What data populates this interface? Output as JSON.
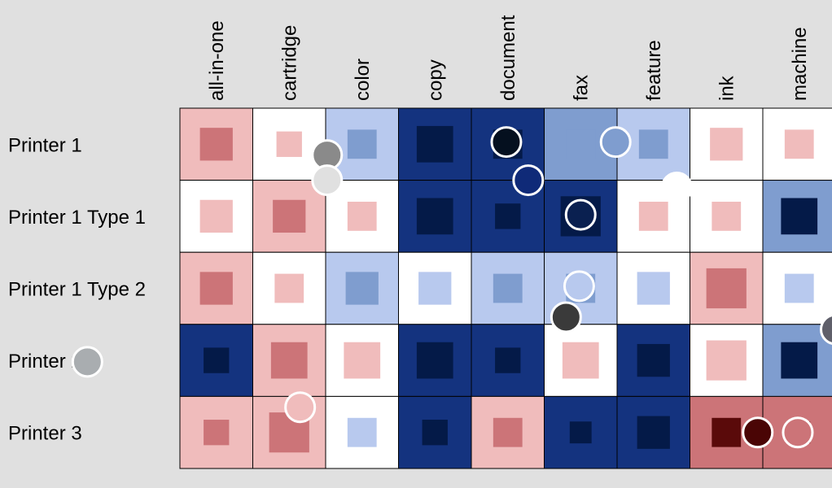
{
  "chart_data": {
    "type": "heatmap",
    "title": "",
    "xlabel": "",
    "ylabel": "",
    "columns": [
      "all-in-one",
      "cartridge",
      "color",
      "copy",
      "document",
      "fax",
      "feature",
      "ink",
      "machine"
    ],
    "rows": [
      "Printer 1",
      "Printer 1 Type 1",
      "Printer 1 Type 2",
      "Printer 2",
      "Printer 3"
    ],
    "cell_levels": [
      [
        -1,
        0,
        1,
        3,
        3,
        2,
        1,
        0,
        0
      ],
      [
        0,
        -1,
        0,
        3,
        3,
        3,
        0,
        0,
        2
      ],
      [
        -1,
        0,
        1,
        0,
        1,
        1,
        0,
        -1,
        0
      ],
      [
        3,
        -1,
        0,
        3,
        3,
        0,
        3,
        0,
        2
      ],
      [
        -1,
        -1,
        0,
        3,
        -1,
        3,
        3,
        -2,
        -2
      ]
    ],
    "inner_levels": [
      [
        -2,
        -1,
        2,
        4,
        4,
        2,
        2,
        -1,
        -1
      ],
      [
        -1,
        -2,
        -1,
        4,
        4,
        4,
        -1,
        -1,
        4
      ],
      [
        -2,
        -1,
        2,
        1,
        2,
        2,
        1,
        -2,
        1
      ],
      [
        4,
        -2,
        -1,
        4,
        4,
        -1,
        4,
        -1,
        4
      ],
      [
        -2,
        -2,
        1,
        4,
        -2,
        4,
        4,
        -3,
        -3
      ]
    ],
    "inner_sizes": [
      [
        0.45,
        0.35,
        0.4,
        0.5,
        0.4,
        0.4,
        0.4,
        0.45,
        0.4
      ],
      [
        0.45,
        0.45,
        0.4,
        0.5,
        0.35,
        0.55,
        0.4,
        0.4,
        0.5
      ],
      [
        0.45,
        0.4,
        0.45,
        0.45,
        0.4,
        0.4,
        0.45,
        0.55,
        0.4
      ],
      [
        0.35,
        0.5,
        0.5,
        0.5,
        0.35,
        0.5,
        0.45,
        0.55,
        0.5
      ],
      [
        0.35,
        0.55,
        0.4,
        0.35,
        0.4,
        0.3,
        0.45,
        0.4,
        0.3
      ]
    ],
    "level_colors": {
      "-3": "#5a0a0a",
      "-2": "#cc7478",
      "-1": "#f0bcbc",
      "0": "#ffffff",
      "1": "#b8c9ee",
      "2": "#7f9dcf",
      "3": "#14337f",
      "4": "#041a48"
    },
    "overlay_markers": [
      {
        "fill": "#8a8a8a",
        "stroke": "#ffffff",
        "col": 1.52,
        "row": 0.65
      },
      {
        "fill": "#e0e0e0",
        "stroke": "#ffffff",
        "col": 1.52,
        "row": 1.0
      },
      {
        "fill": "#05101f",
        "stroke": "#ffffff",
        "col": 3.98,
        "row": 0.47
      },
      {
        "fill": "#0f2a78",
        "stroke": "#ffffff",
        "col": 4.28,
        "row": 1.0
      },
      {
        "fill": "#7f9dcf",
        "stroke": "#ffffff",
        "col": 5.48,
        "row": 0.47
      },
      {
        "fill": "#ffffff",
        "stroke": "#ffffff",
        "col": 6.32,
        "row": 1.1
      },
      {
        "fill": "#0a2050",
        "stroke": "#ffffff",
        "col": 5.0,
        "row": 1.48
      },
      {
        "fill": "#b8c9ee",
        "stroke": "#ffffff",
        "col": 4.98,
        "row": 2.47
      },
      {
        "fill": "#3a3a3a",
        "stroke": "#ffffff",
        "col": 4.8,
        "row": 2.9
      },
      {
        "fill": "#5f5f6a",
        "stroke": "#ffffff",
        "col": 8.5,
        "row": 3.07
      },
      {
        "fill": "#a9adb0",
        "stroke": "#ffffff",
        "col": -1.77,
        "row": 3.52
      },
      {
        "fill": "#f0bcbc",
        "stroke": "#ffffff",
        "col": 1.15,
        "row": 4.15
      },
      {
        "fill": "#4a0505",
        "stroke": "#ffffff",
        "col": 7.43,
        "row": 4.5
      },
      {
        "fill": "#cc7478",
        "stroke": "#ffffff",
        "col": 7.98,
        "row": 4.5
      }
    ]
  }
}
